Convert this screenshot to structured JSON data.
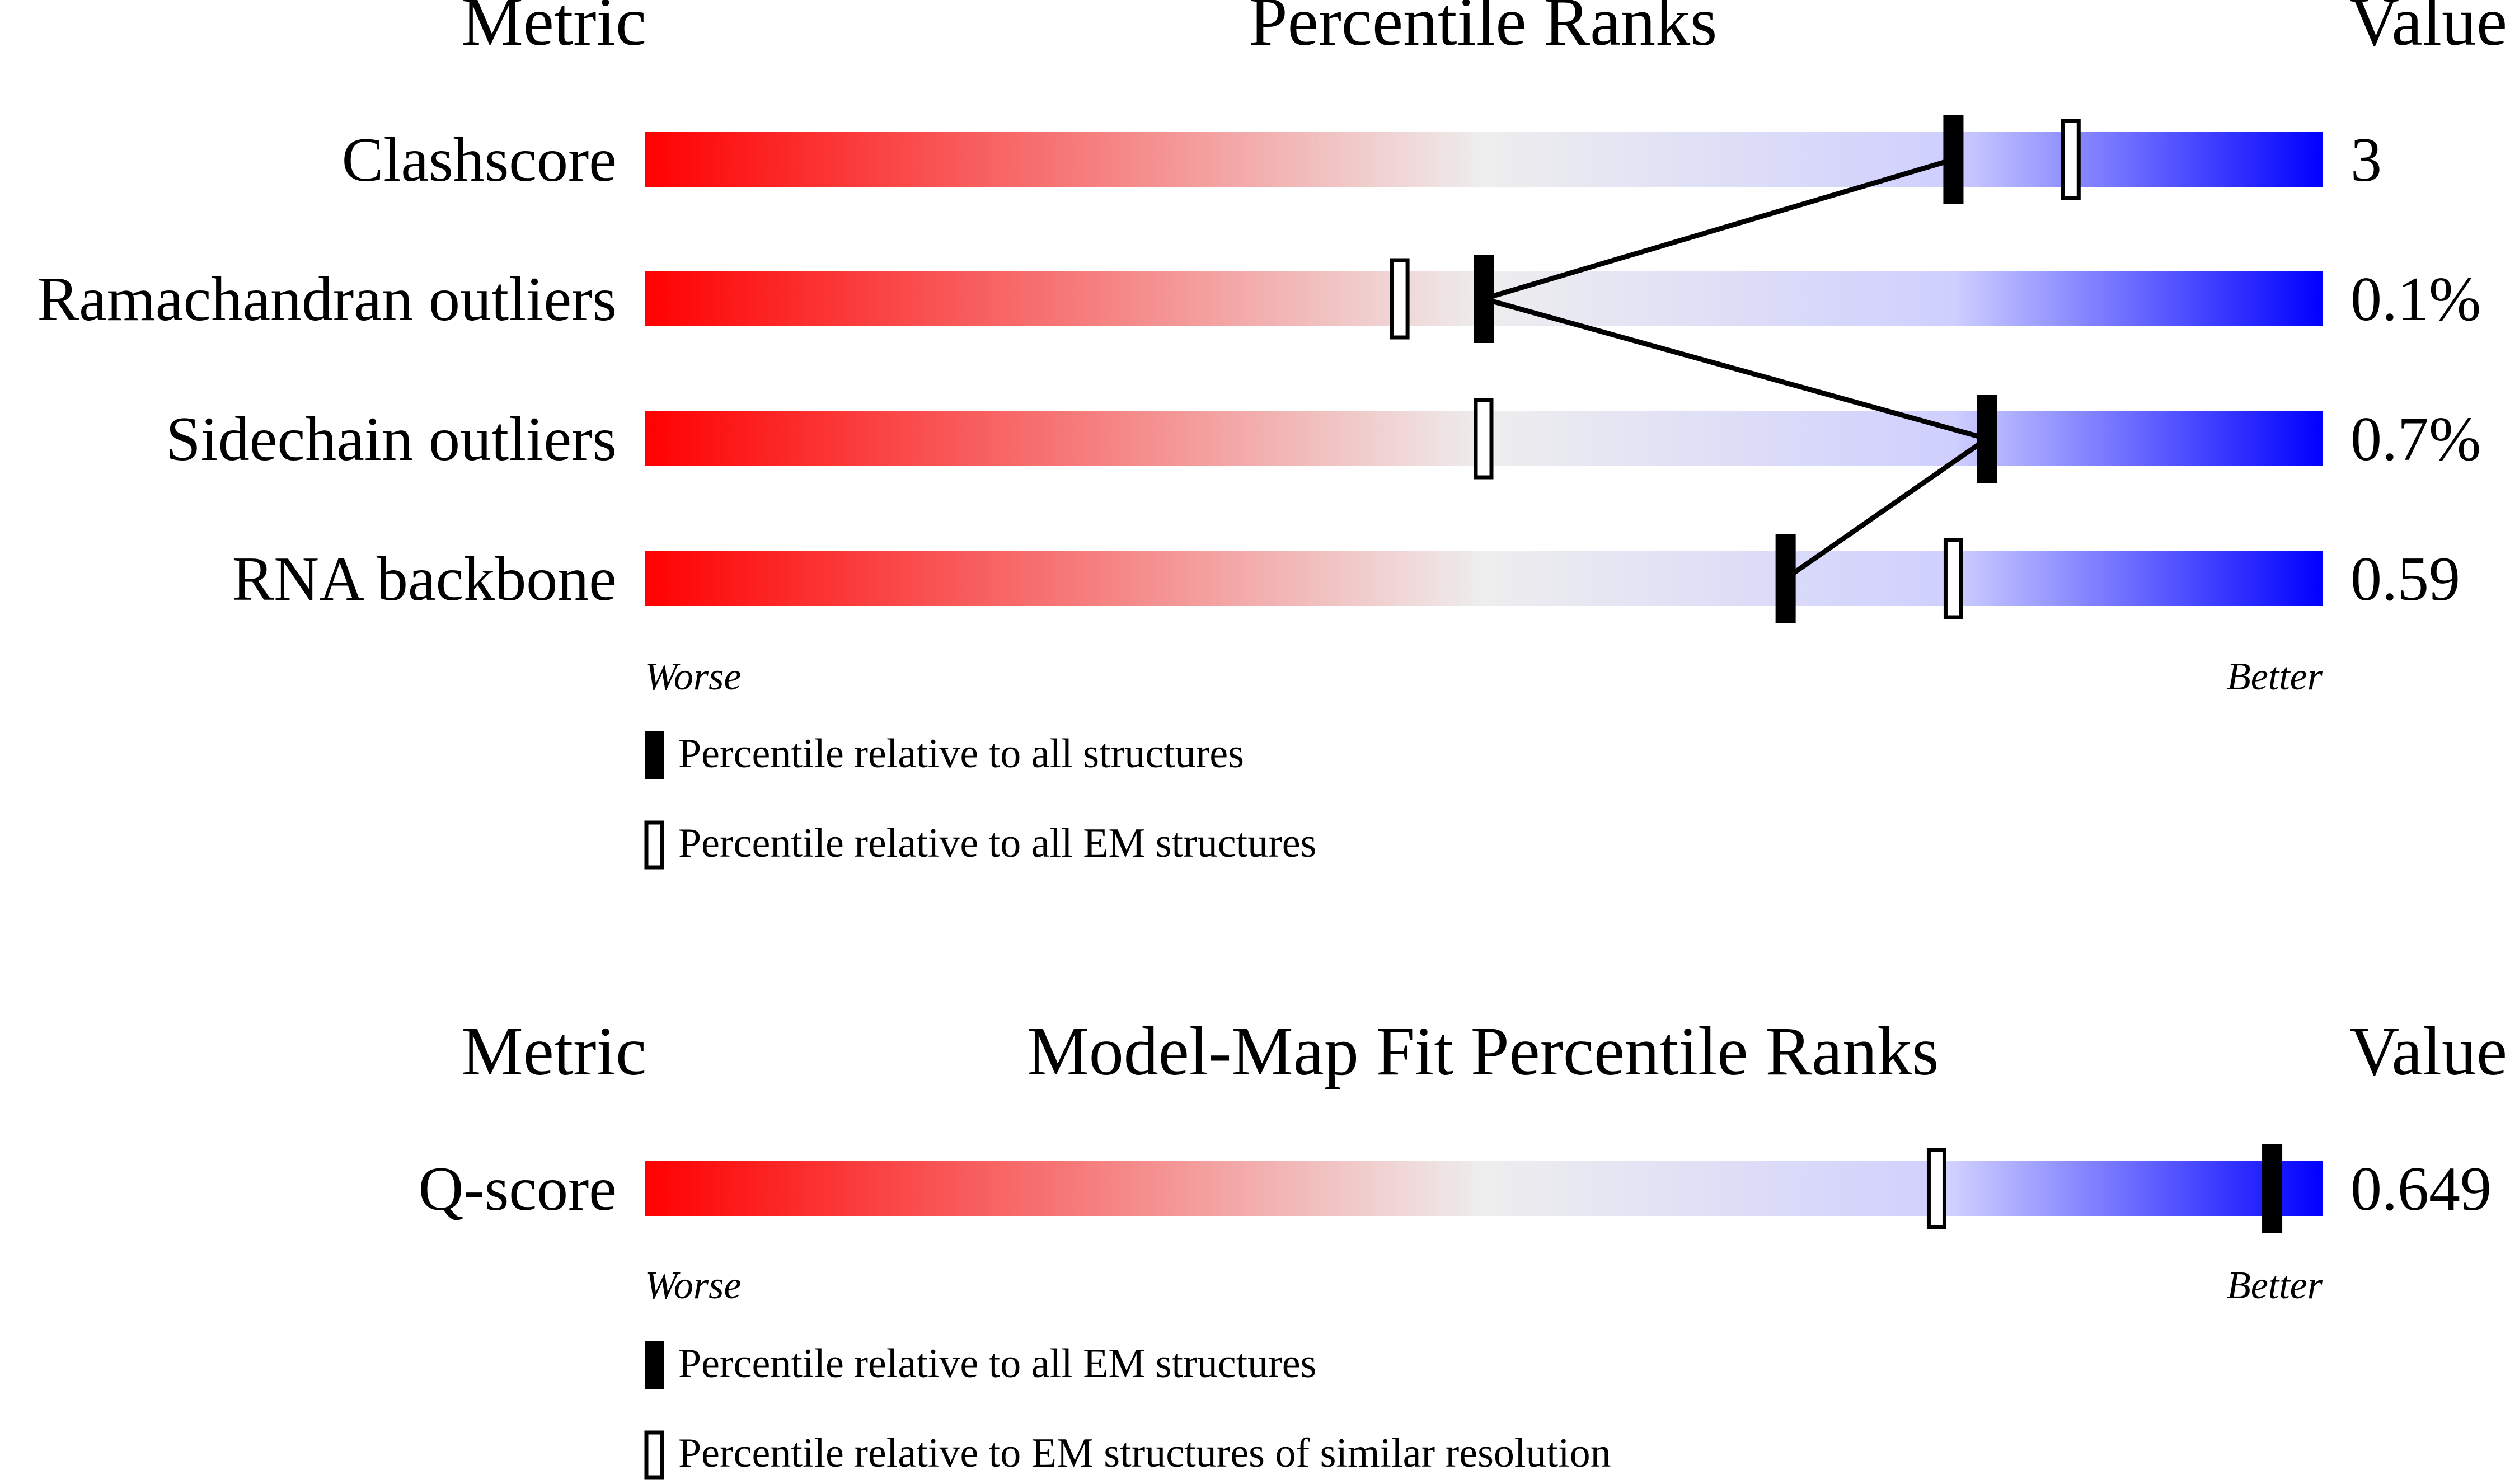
{
  "sections": [
    {
      "headers": {
        "metric": "Metric",
        "title": "Percentile Ranks",
        "value": "Value"
      },
      "rows": [
        {
          "label": "Clashscore",
          "value": "3"
        },
        {
          "label": "Ramachandran outliers",
          "value": "0.1%"
        },
        {
          "label": "Sidechain outliers",
          "value": "0.7%"
        },
        {
          "label": "RNA backbone",
          "value": "0.59"
        }
      ],
      "axis": {
        "worse": "Worse",
        "better": "Better"
      },
      "legend": [
        {
          "marker": "filled",
          "label": "Percentile relative to all structures"
        },
        {
          "marker": "open",
          "label": "Percentile relative to all EM structures"
        }
      ]
    },
    {
      "headers": {
        "metric": "Metric",
        "title": "Model-Map Fit Percentile Ranks",
        "value": "Value"
      },
      "rows": [
        {
          "label": "Q-score",
          "value": "0.649"
        }
      ],
      "axis": {
        "worse": "Worse",
        "better": "Better"
      },
      "legend": [
        {
          "marker": "filled",
          "label": "Percentile relative to all EM structures"
        },
        {
          "marker": "open",
          "label": "Percentile relative to EM structures of similar resolution"
        }
      ]
    }
  ],
  "chart_data": [
    {
      "type": "percentile-bar",
      "title": "Percentile Ranks",
      "xlim": [
        0,
        100
      ],
      "categories": [
        "Clashscore",
        "Ramachandran outliers",
        "Sidechain outliers",
        "RNA backbone"
      ],
      "series": [
        {
          "name": "Percentile relative to all structures",
          "marker": "filled",
          "connected": true,
          "values": [
            78,
            50,
            80,
            68
          ]
        },
        {
          "name": "Percentile relative to all EM structures",
          "marker": "open",
          "values": [
            85,
            45,
            50,
            78
          ]
        }
      ],
      "colors": {
        "worse": "#ff0000",
        "middle": "#eeeeee",
        "better": "#0000ff"
      }
    },
    {
      "type": "percentile-bar",
      "title": "Model-Map Fit Percentile Ranks",
      "xlim": [
        0,
        100
      ],
      "categories": [
        "Q-score"
      ],
      "series": [
        {
          "name": "Percentile relative to all EM structures",
          "marker": "filled",
          "connected": false,
          "values": [
            97
          ]
        },
        {
          "name": "Percentile relative to EM structures of similar resolution",
          "marker": "open",
          "values": [
            77
          ]
        }
      ],
      "colors": {
        "worse": "#ff0000",
        "middle": "#eeeeee",
        "better": "#0000ff"
      }
    }
  ]
}
